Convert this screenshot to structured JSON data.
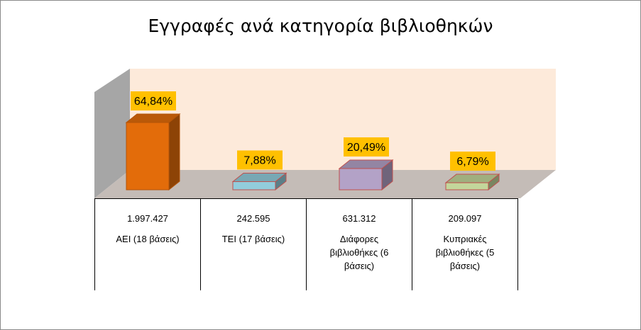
{
  "chart_data": {
    "type": "bar",
    "title": "Εγγραφές ανά κατηγορία βιβλιοθηκών",
    "categories": [
      "ΑΕΙ (18 βάσεις)",
      "ΤΕΙ (17 βάσεις)",
      "Διάφορες βιβλιοθήκες (6 βάσεις)",
      "Κυπριακές βιβλιοθήκες (5 βάσεις)"
    ],
    "category_lines": [
      [
        "ΑΕΙ (18 βάσεις)"
      ],
      [
        "ΤΕΙ (17 βάσεις)"
      ],
      [
        "Διάφορες",
        "βιβλιοθήκες (6",
        "βάσεις)"
      ],
      [
        "Κυπριακές",
        "βιβλιοθήκες (5",
        "βάσεις)"
      ]
    ],
    "values": [
      1997427,
      242595,
      631312,
      209097
    ],
    "value_labels": [
      "1.997.427",
      "242.595",
      "631.312",
      "209.097"
    ],
    "percent_labels": [
      "64,84%",
      "7,88%",
      "20,49%",
      "6,79%"
    ],
    "colors": [
      "#e36c0a",
      "#92cddc",
      "#b3a2c7",
      "#c3d69b"
    ],
    "grid": false,
    "legend": "none"
  }
}
